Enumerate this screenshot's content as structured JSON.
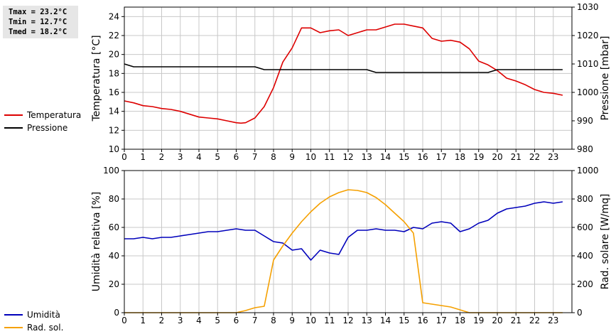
{
  "stats": {
    "tmax": "Tmax = 23.2°C",
    "tmin": "Tmin = 12.7°C",
    "tmed": "Tmed = 18.2°C"
  },
  "colors": {
    "temperature": "#dd0000",
    "pressure": "#000000",
    "humidity": "#0000bb",
    "radiation": "#f5a000",
    "grid": "#c8c8c8"
  },
  "chart_data": [
    {
      "type": "line",
      "x_label_values": [
        0,
        1,
        2,
        3,
        4,
        5,
        6,
        7,
        8,
        9,
        10,
        11,
        12,
        13,
        14,
        15,
        16,
        17,
        18,
        19,
        20,
        21,
        22,
        23
      ],
      "xlim": [
        0,
        24
      ],
      "ylabel": "Temperatura [°C]",
      "ylim": [
        10,
        25
      ],
      "yticks": [
        10,
        12,
        14,
        16,
        18,
        20,
        22,
        24
      ],
      "y2label": "Pressione [mbar]",
      "y2lim": [
        980,
        1030
      ],
      "y2ticks": [
        980,
        990,
        1000,
        1010,
        1020,
        1030
      ],
      "grid": true,
      "legend_position": "left",
      "series": [
        {
          "name": "Temperatura",
          "axis": "left",
          "x": [
            0,
            0.5,
            1,
            1.5,
            2,
            2.5,
            3,
            3.5,
            4,
            4.5,
            5,
            5.5,
            6,
            6.25,
            6.5,
            7,
            7.5,
            8,
            8.5,
            9,
            9.5,
            10,
            10.5,
            11,
            11.5,
            12,
            12.5,
            13,
            13.5,
            14,
            14.5,
            15,
            15.5,
            16,
            16.5,
            17,
            17.5,
            18,
            18.5,
            19,
            19.5,
            20,
            20.5,
            21,
            21.5,
            22,
            22.5,
            23,
            23.5
          ],
          "y": [
            15.1,
            14.9,
            14.6,
            14.5,
            14.3,
            14.2,
            14.0,
            13.7,
            13.4,
            13.3,
            13.2,
            13.0,
            12.8,
            12.75,
            12.8,
            13.3,
            14.5,
            16.5,
            19.2,
            20.7,
            22.8,
            22.8,
            22.3,
            22.5,
            22.6,
            22.0,
            22.3,
            22.6,
            22.6,
            22.9,
            23.2,
            23.2,
            23.0,
            22.8,
            21.7,
            21.4,
            21.5,
            21.3,
            20.6,
            19.3,
            18.9,
            18.3,
            17.5,
            17.2,
            16.8,
            16.3,
            16.0,
            15.9,
            15.7
          ]
        },
        {
          "name": "Pressione",
          "axis": "right",
          "x": [
            0,
            0.5,
            1,
            2,
            3,
            4,
            5,
            6,
            7,
            7.5,
            8,
            9,
            10,
            11,
            12,
            13,
            13.5,
            14,
            15,
            16,
            17,
            18,
            19,
            19.5,
            20,
            21,
            22,
            23,
            23.5
          ],
          "y": [
            1010,
            1009,
            1009,
            1009,
            1009,
            1009,
            1009,
            1009,
            1009,
            1008,
            1008,
            1008,
            1008,
            1008,
            1008,
            1008,
            1007,
            1007,
            1007,
            1007,
            1007,
            1007,
            1007,
            1007,
            1008,
            1008,
            1008,
            1008,
            1008
          ]
        }
      ]
    },
    {
      "type": "line",
      "x_label_values": [
        0,
        1,
        2,
        3,
        4,
        5,
        6,
        7,
        8,
        9,
        10,
        11,
        12,
        13,
        14,
        15,
        16,
        17,
        18,
        19,
        20,
        21,
        22,
        23
      ],
      "xlim": [
        0,
        24
      ],
      "ylabel": "Umidità relativa [%]",
      "ylim": [
        0,
        100
      ],
      "yticks": [
        0,
        20,
        40,
        60,
        80,
        100
      ],
      "y2label": "Rad. solare [W/mq]",
      "y2lim": [
        0,
        1000
      ],
      "y2ticks": [
        0,
        200,
        400,
        600,
        800,
        1000
      ],
      "grid": true,
      "legend_position": "left",
      "series": [
        {
          "name": "Umidità",
          "axis": "left",
          "x": [
            0,
            0.5,
            1,
            1.5,
            2,
            2.5,
            3,
            3.5,
            4,
            4.5,
            5,
            5.5,
            6,
            6.5,
            7,
            7.5,
            8,
            8.5,
            9,
            9.5,
            10,
            10.5,
            11,
            11.5,
            12,
            12.5,
            13,
            13.5,
            14,
            14.5,
            15,
            15.5,
            16,
            16.5,
            17,
            17.5,
            18,
            18.5,
            19,
            19.5,
            20,
            20.5,
            21,
            21.5,
            22,
            22.5,
            23,
            23.5
          ],
          "y": [
            52,
            52,
            53,
            52,
            53,
            53,
            54,
            55,
            56,
            57,
            57,
            58,
            59,
            58,
            58,
            54,
            50,
            49,
            44,
            45,
            37,
            44,
            42,
            41,
            53,
            58,
            58,
            59,
            58,
            58,
            57,
            60,
            59,
            63,
            64,
            63,
            57,
            59,
            63,
            65,
            70,
            73,
            74,
            75,
            77,
            78,
            77,
            78
          ]
        },
        {
          "name": "Rad. sol.",
          "axis": "right",
          "x": [
            0,
            1,
            2,
            3,
            4,
            5,
            6,
            6.5,
            7,
            7.5,
            8,
            8.5,
            9,
            9.5,
            10,
            10.5,
            11,
            11.5,
            12,
            12.5,
            13,
            13.5,
            14,
            14.5,
            15,
            15.5,
            16,
            16.5,
            17,
            17.5,
            18,
            18.5,
            19,
            20,
            21,
            22,
            23,
            23.5
          ],
          "y": [
            0,
            0,
            0,
            0,
            0,
            0,
            0,
            15,
            35,
            45,
            370,
            470,
            560,
            640,
            710,
            770,
            815,
            845,
            865,
            860,
            845,
            810,
            760,
            700,
            640,
            560,
            70,
            60,
            50,
            40,
            20,
            0,
            0,
            0,
            0,
            0,
            0,
            0
          ]
        }
      ]
    }
  ]
}
